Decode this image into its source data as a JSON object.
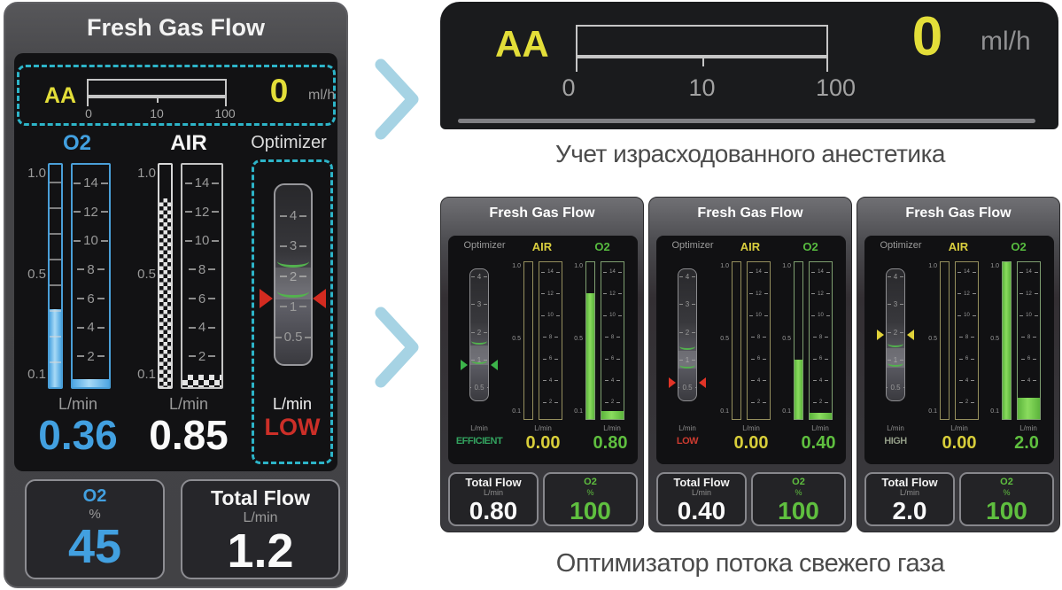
{
  "left_panel": {
    "title": "Fresh Gas Flow",
    "aa": {
      "label": "AA",
      "value": "0",
      "unit": "ml/h",
      "ticks": [
        "0",
        "10",
        "100"
      ]
    },
    "o2": {
      "label": "O2",
      "unit": "L/min",
      "value": "0.36",
      "small_scale": [
        "1.0",
        "0.5",
        "0.1"
      ],
      "large_scale": [
        "14",
        "12",
        "10",
        "8",
        "6",
        "4",
        "2"
      ]
    },
    "air": {
      "label": "AIR",
      "unit": "L/min",
      "value": "0.85",
      "small_scale": [
        "1.0",
        "0.5",
        "0.1"
      ],
      "large_scale": [
        "14",
        "12",
        "10",
        "8",
        "6",
        "4",
        "2"
      ]
    },
    "optimizer": {
      "label": "Optimizer",
      "unit": "L/min",
      "status": "LOW",
      "scale": [
        "4",
        "3",
        "2",
        "1",
        "0.5"
      ]
    },
    "o2_box": {
      "label": "O2",
      "unit": "%",
      "value": "45"
    },
    "total_box": {
      "label": "Total Flow",
      "unit": "L/min",
      "value": "1.2"
    }
  },
  "aa_detail": {
    "label": "AA",
    "value": "0",
    "unit": "ml/h",
    "ticks": [
      "0",
      "10",
      "100"
    ],
    "caption": "Учет израсходованного анестетика"
  },
  "small_panels": {
    "caption": "Оптимизатор потока свежего газа",
    "shared": {
      "title": "Fresh Gas Flow",
      "optimizer_label": "Optimizer",
      "air_label": "AIR",
      "o2_label": "O2",
      "unit": "L/min",
      "opt_scale": [
        "4",
        "3",
        "2",
        "1",
        "0.5"
      ],
      "small_scale": [
        "1.0",
        "0.5",
        "0.1"
      ],
      "large_scale": [
        "14",
        "12",
        "10",
        "8",
        "6",
        "4",
        "2"
      ],
      "total_label": "Total Flow",
      "o2_pct_label": "O2",
      "pct_unit": "%"
    },
    "panels": [
      {
        "status": "EFFICIENT",
        "air_value": "0.00",
        "o2_value": "0.80",
        "total_value": "0.80",
        "o2_pct_value": "100",
        "status_color": "#33a35f",
        "arrow_color": "#3cb54a"
      },
      {
        "status": "LOW",
        "air_value": "0.00",
        "o2_value": "0.40",
        "total_value": "0.40",
        "o2_pct_value": "100",
        "status_color": "#cc3b30",
        "arrow_color": "#e23427"
      },
      {
        "status": "HIGH",
        "air_value": "0.00",
        "o2_value": "2.0",
        "total_value": "2.0",
        "o2_pct_value": "100",
        "status_color": "#929c86",
        "arrow_color": "#e0d23a"
      }
    ]
  },
  "colors": {
    "accent_cyan_dashed": "#2db4c8",
    "o2_blue": "#42a0e0",
    "aa_yellow": "#e3de39",
    "alarm_red": "#cc2f28",
    "flow_green": "#5fbf3f",
    "air_yellow": "#d9ce3e",
    "chevron_blue": "#a6d3e4",
    "screen_black": "#121214"
  }
}
